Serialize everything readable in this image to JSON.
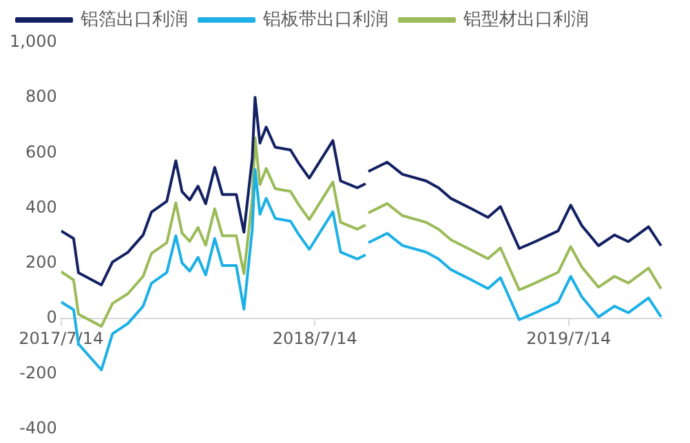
{
  "chart_data": {
    "type": "line",
    "x": [
      "2017-07-14",
      "2017-08-01",
      "2017-08-08",
      "2017-09-10",
      "2017-09-26",
      "2017-10-18",
      "2017-11-09",
      "2017-11-21",
      "2017-12-13",
      "2017-12-26",
      "2018-01-04",
      "2018-01-15",
      "2018-01-27",
      "2018-02-07",
      "2018-02-20",
      "2018-03-03",
      "2018-03-23",
      "2018-04-03",
      "2018-04-15",
      "2018-04-19",
      "2018-04-26",
      "2018-05-05",
      "2018-05-18",
      "2018-06-09",
      "2018-06-21",
      "2018-07-06",
      "2018-08-09",
      "2018-08-20",
      "2018-09-13",
      "2018-09-25",
      "2018-09-28",
      "2018-09-29",
      "2018-10-26",
      "2018-11-17",
      "2018-12-21",
      "2019-01-08",
      "2019-01-26",
      "2019-02-22",
      "2019-03-20",
      "2019-04-07",
      "2019-05-04",
      "2019-05-27",
      "2019-06-29",
      "2019-07-17",
      "2019-08-02",
      "2019-08-26",
      "2019-09-18",
      "2019-10-08",
      "2019-11-06",
      "2019-11-24"
    ],
    "series": [
      {
        "name": "铝箔出口利润",
        "color": "#132163",
        "values": [
          318,
          290,
          166,
          122,
          205,
          240,
          303,
          386,
          425,
          572,
          460,
          430,
          480,
          416,
          548,
          450,
          450,
          313,
          582,
          802,
          636,
          694,
          621,
          611,
          562,
          509,
          645,
          499,
          474,
          489,
          null,
          533,
          567,
          523,
          499,
          474,
          435,
          401,
          367,
          406,
          254,
          279,
          318,
          411,
          337,
          264,
          303,
          279,
          333,
          264
        ]
      },
      {
        "name": "铝板带出口利润",
        "color": "#1cb0e6",
        "values": [
          60,
          32,
          -92,
          -186,
          -55,
          -18,
          45,
          128,
          167,
          300,
          202,
          172,
          222,
          158,
          290,
          192,
          192,
          34,
          324,
          540,
          378,
          436,
          363,
          353,
          304,
          251,
          387,
          241,
          216,
          231,
          null,
          275,
          309,
          265,
          241,
          216,
          177,
          143,
          109,
          148,
          -4,
          21,
          60,
          153,
          79,
          6,
          45,
          21,
          75,
          6
        ]
      },
      {
        "name": "铝型材出口利润",
        "color": "#9bbb59",
        "values": [
          170,
          140,
          16,
          -28,
          55,
          90,
          153,
          236,
          275,
          420,
          310,
          280,
          330,
          266,
          398,
          300,
          300,
          163,
          432,
          655,
          486,
          544,
          471,
          461,
          412,
          359,
          495,
          349,
          324,
          339,
          null,
          383,
          417,
          373,
          349,
          324,
          285,
          251,
          217,
          256,
          104,
          129,
          168,
          261,
          187,
          114,
          153,
          129,
          183,
          108
        ]
      }
    ],
    "xlim": [
      "2017-07-14",
      "2019-11-26"
    ],
    "xticks": [
      {
        "value": "2017-07-14",
        "label": "2017/7/14"
      },
      {
        "value": "2018-07-14",
        "label": "2018/7/14"
      },
      {
        "value": "2019-07-14",
        "label": "2019/7/14"
      }
    ],
    "ylim": [
      -400,
      1000
    ],
    "yticks": [
      -400,
      -200,
      0,
      200,
      400,
      600,
      800,
      {
        "value": 1000,
        "label": "1,000"
      }
    ],
    "grid": false,
    "legend": "top",
    "marker": "none",
    "line_style": "solid"
  }
}
